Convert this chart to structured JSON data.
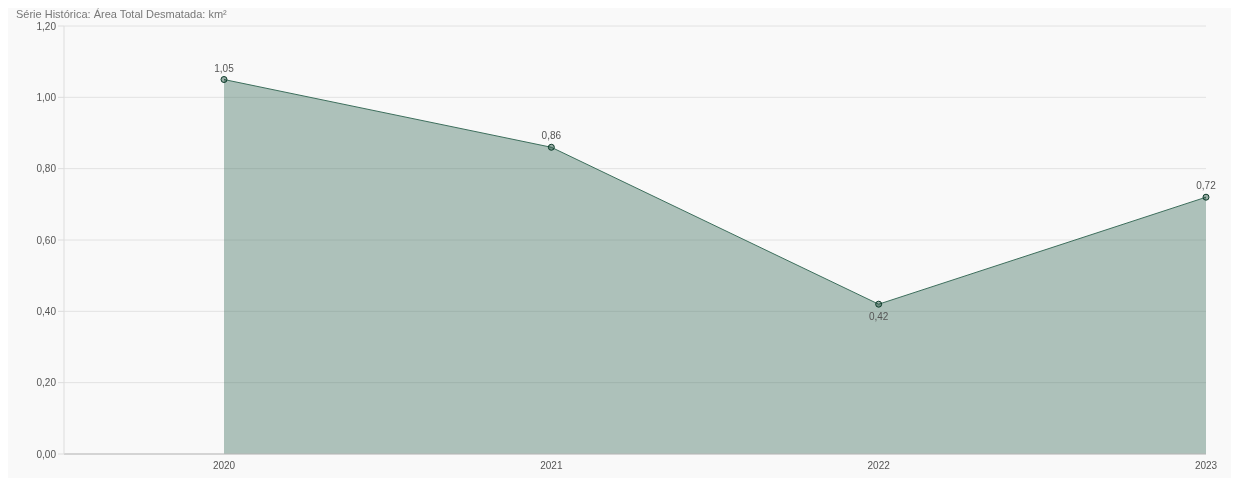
{
  "chart_data": {
    "type": "area",
    "title": "Série Histórica: Área Total Desmatada: km²",
    "categories": [
      "2020",
      "2021",
      "2022",
      "2023"
    ],
    "series": [
      {
        "color": "#3d6e5c",
        "values": [
          1.05,
          0.86,
          0.42,
          0.72
        ],
        "value_labels": [
          "1,05",
          "0,86",
          "0,42",
          "0,72"
        ]
      }
    ],
    "ylim": [
      0,
      1.2
    ],
    "yticks": [
      {
        "value": 0,
        "label": "0,00"
      },
      {
        "value": 0.2,
        "label": "0,20"
      },
      {
        "value": 0.4,
        "label": "0,40"
      },
      {
        "value": 0.6,
        "label": "0,60"
      },
      {
        "value": 0.8,
        "label": "0,80"
      },
      {
        "value": 1,
        "label": "1,00"
      },
      {
        "value": 1.2,
        "label": "1,20"
      }
    ],
    "grid": "y",
    "marker": "circle"
  }
}
